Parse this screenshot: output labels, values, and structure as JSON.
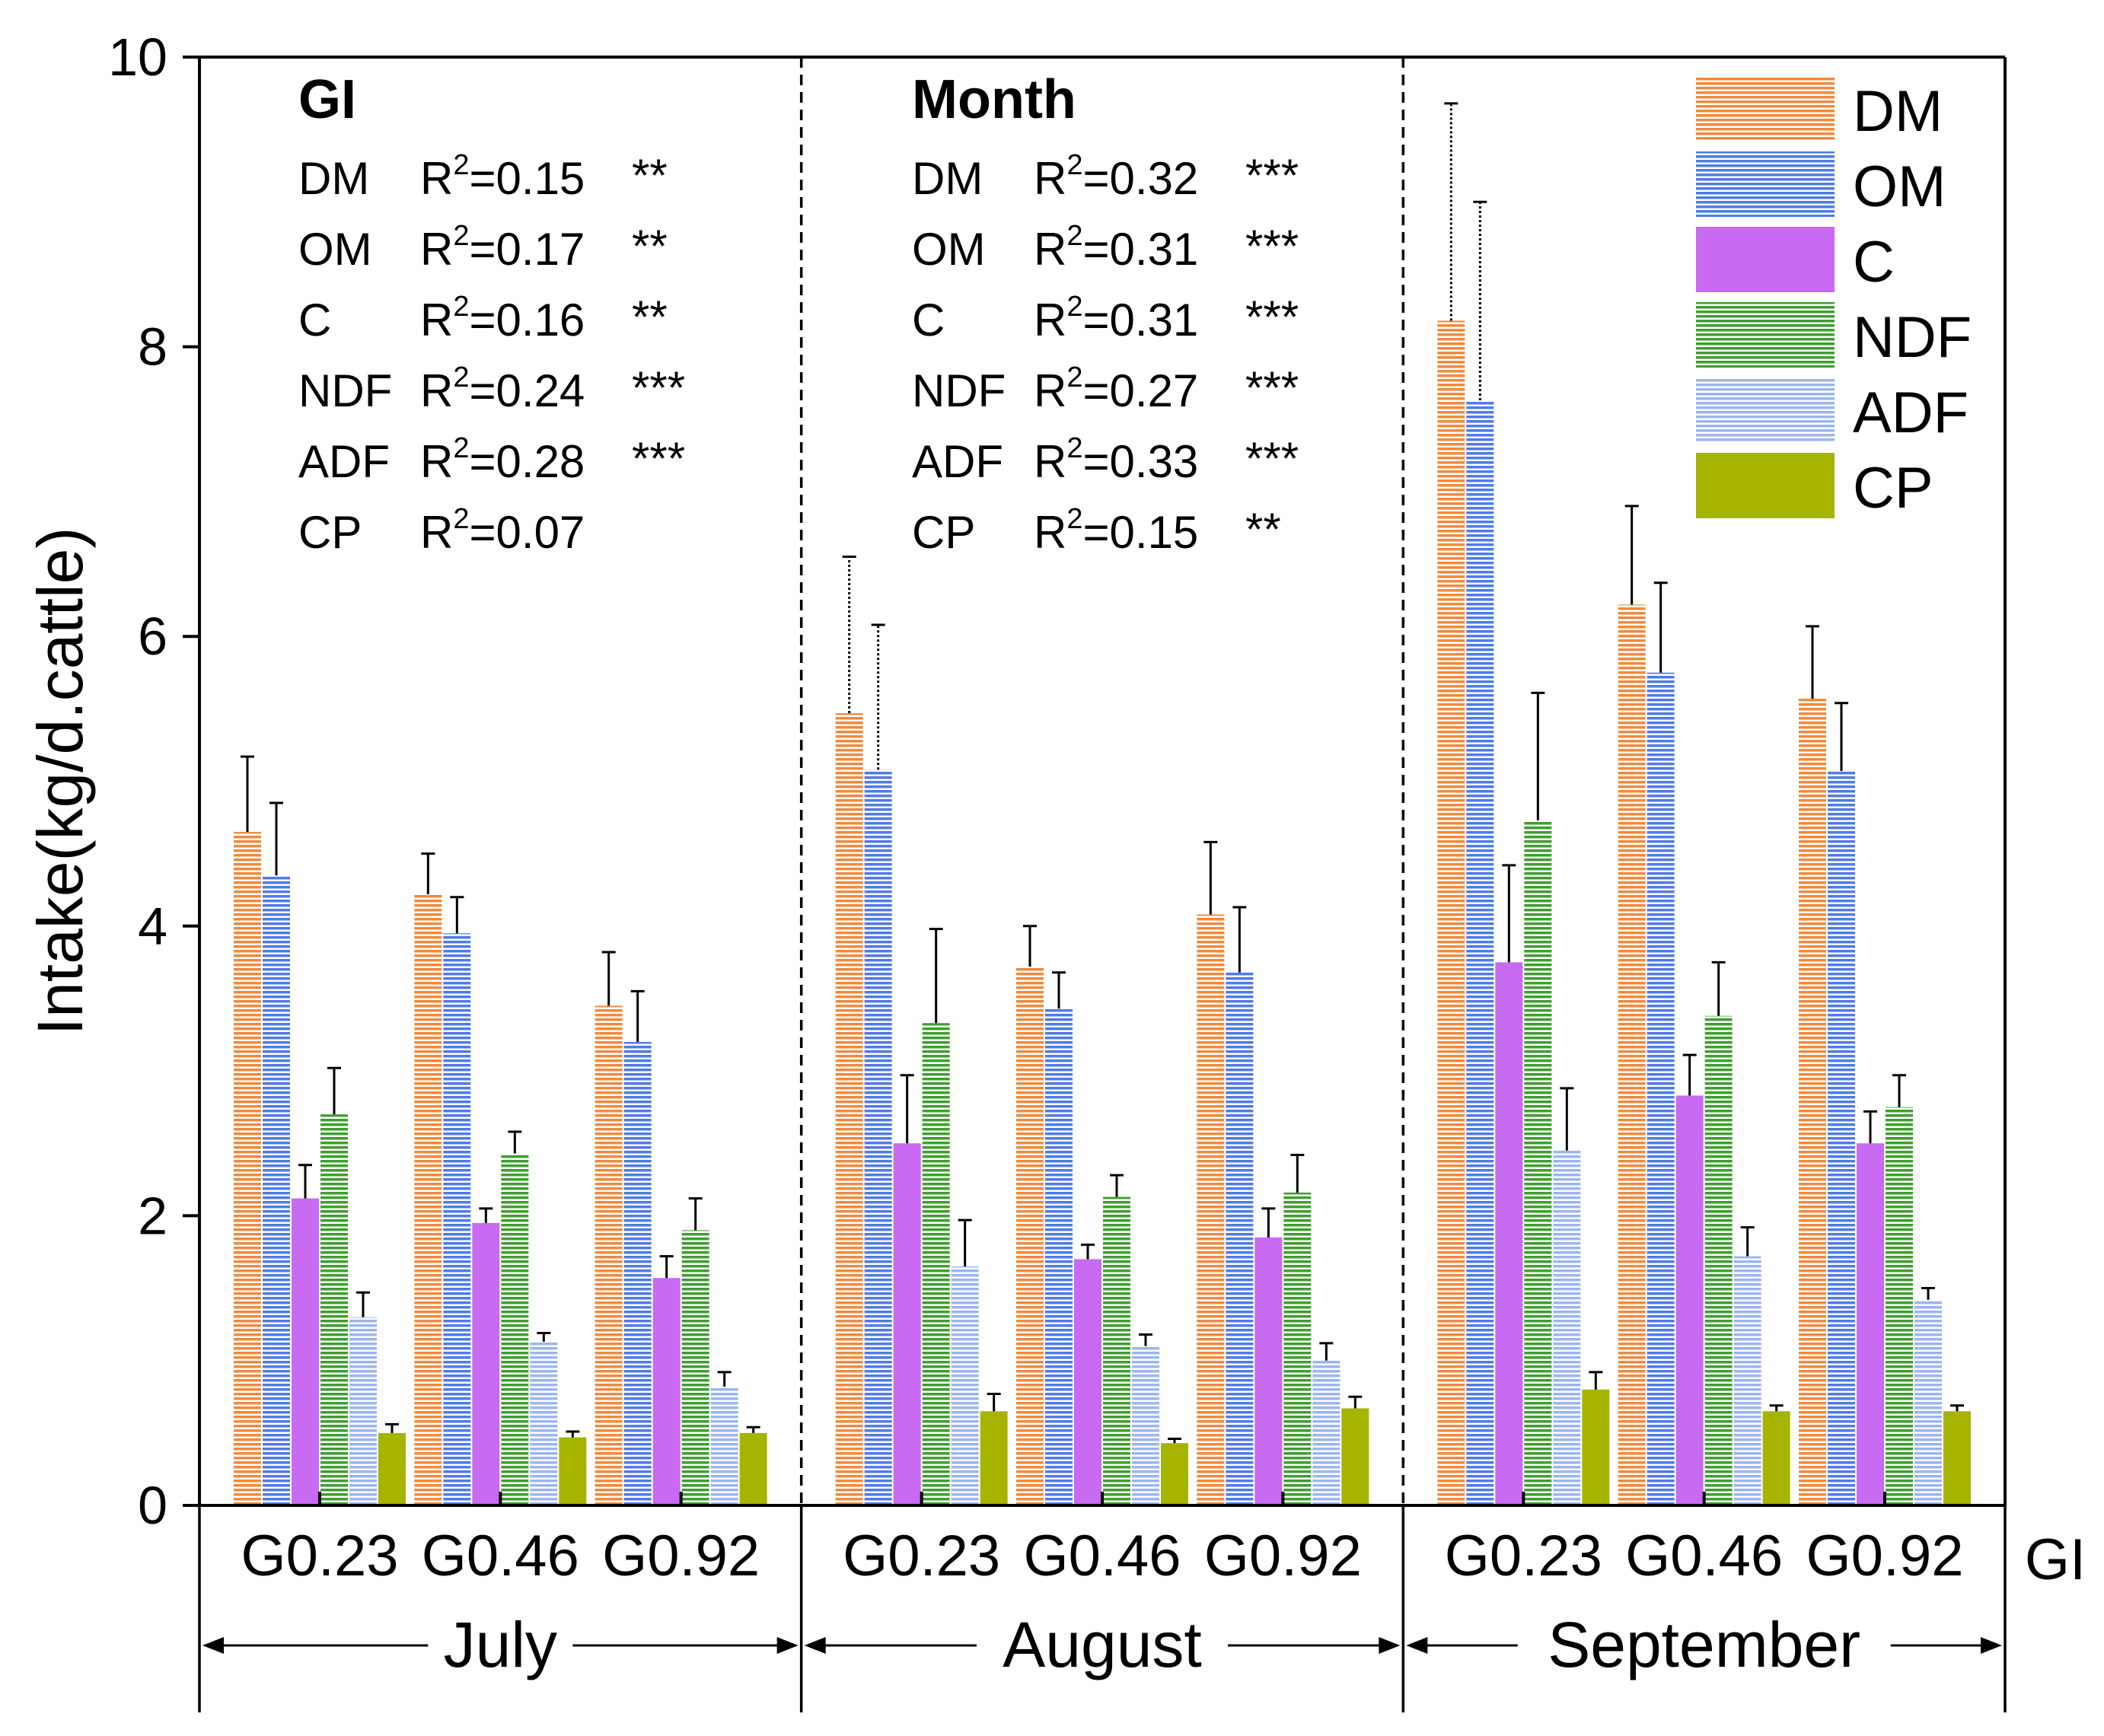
{
  "chart_data": {
    "type": "bar",
    "ylabel": "Intake(kg/d.cattle)",
    "ylim": [
      0,
      10
    ],
    "yticks": [
      "0",
      "2",
      "4",
      "6",
      "8",
      "10"
    ],
    "x_axis_label": "GI",
    "months": [
      {
        "name": "July",
        "groups": [
          "G0.23",
          "G0.46",
          "G0.92"
        ]
      },
      {
        "name": "August",
        "groups": [
          "G0.23",
          "G0.46",
          "G0.92"
        ]
      },
      {
        "name": "September",
        "groups": [
          "G0.23",
          "G0.46",
          "G0.92"
        ]
      }
    ],
    "series": [
      {
        "name": "DM",
        "color": "#f08a3c",
        "hatch": "h",
        "values": [
          4.65,
          4.22,
          3.45,
          5.47,
          3.72,
          4.08,
          8.18,
          6.22,
          5.57
        ],
        "errors": [
          0.52,
          0.28,
          0.37,
          1.08,
          0.28,
          0.5,
          1.5,
          0.68,
          0.5
        ]
      },
      {
        "name": "OM",
        "color": "#4f7be6",
        "hatch": "h",
        "values": [
          4.35,
          3.95,
          3.2,
          5.08,
          3.43,
          3.68,
          7.63,
          5.75,
          5.07
        ],
        "errors": [
          0.5,
          0.25,
          0.35,
          1.0,
          0.25,
          0.45,
          1.37,
          0.62,
          0.47
        ]
      },
      {
        "name": "C",
        "color": "#c86af2",
        "hatch": "solid",
        "values": [
          2.12,
          1.95,
          1.57,
          2.5,
          1.7,
          1.85,
          3.75,
          2.83,
          2.5
        ],
        "errors": [
          0.23,
          0.1,
          0.15,
          0.47,
          0.1,
          0.2,
          0.67,
          0.28,
          0.22
        ]
      },
      {
        "name": "NDF",
        "color": "#3f9e2f",
        "hatch": "h",
        "values": [
          2.7,
          2.43,
          1.9,
          3.33,
          2.13,
          2.16,
          4.73,
          3.38,
          2.75
        ],
        "errors": [
          0.32,
          0.15,
          0.22,
          0.65,
          0.15,
          0.26,
          0.88,
          0.37,
          0.22
        ]
      },
      {
        "name": "ADF",
        "color": "#9bb5ee",
        "hatch": "h",
        "values": [
          1.3,
          1.13,
          0.82,
          1.65,
          1.1,
          1.0,
          2.45,
          1.72,
          1.42
        ],
        "errors": [
          0.17,
          0.06,
          0.1,
          0.32,
          0.08,
          0.12,
          0.43,
          0.2,
          0.08
        ]
      },
      {
        "name": "CP",
        "color": "#a6b400",
        "hatch": "solid",
        "values": [
          0.5,
          0.47,
          0.5,
          0.65,
          0.43,
          0.67,
          0.8,
          0.65,
          0.65
        ],
        "errors": [
          0.06,
          0.04,
          0.04,
          0.12,
          0.03,
          0.08,
          0.12,
          0.04,
          0.04
        ]
      }
    ],
    "legend": {
      "position": "top-right",
      "entries": [
        "DM",
        "OM",
        "C",
        "NDF",
        "ADF",
        "CP"
      ]
    },
    "annotations": [
      {
        "title": "GI",
        "rows": [
          {
            "name": "DM",
            "r2": "=0.15",
            "sig": "**"
          },
          {
            "name": "OM",
            "r2": "=0.17",
            "sig": "**"
          },
          {
            "name": "C",
            "r2": "=0.16",
            "sig": "**"
          },
          {
            "name": "NDF",
            "r2": "=0.24",
            "sig": "***"
          },
          {
            "name": "ADF",
            "r2": "=0.28",
            "sig": "***"
          },
          {
            "name": "CP",
            "r2": "=0.07",
            "sig": ""
          }
        ]
      },
      {
        "title": "Month",
        "rows": [
          {
            "name": "DM",
            "r2": "=0.32",
            "sig": "***"
          },
          {
            "name": "OM",
            "r2": "=0.31",
            "sig": "***"
          },
          {
            "name": "C",
            "r2": "=0.31",
            "sig": "***"
          },
          {
            "name": "NDF",
            "r2": "=0.27",
            "sig": "***"
          },
          {
            "name": "ADF",
            "r2": "=0.33",
            "sig": "***"
          },
          {
            "name": "CP",
            "r2": "=0.15",
            "sig": "**"
          }
        ]
      }
    ],
    "r2_prefix": "R",
    "r2_superscript": "2"
  }
}
